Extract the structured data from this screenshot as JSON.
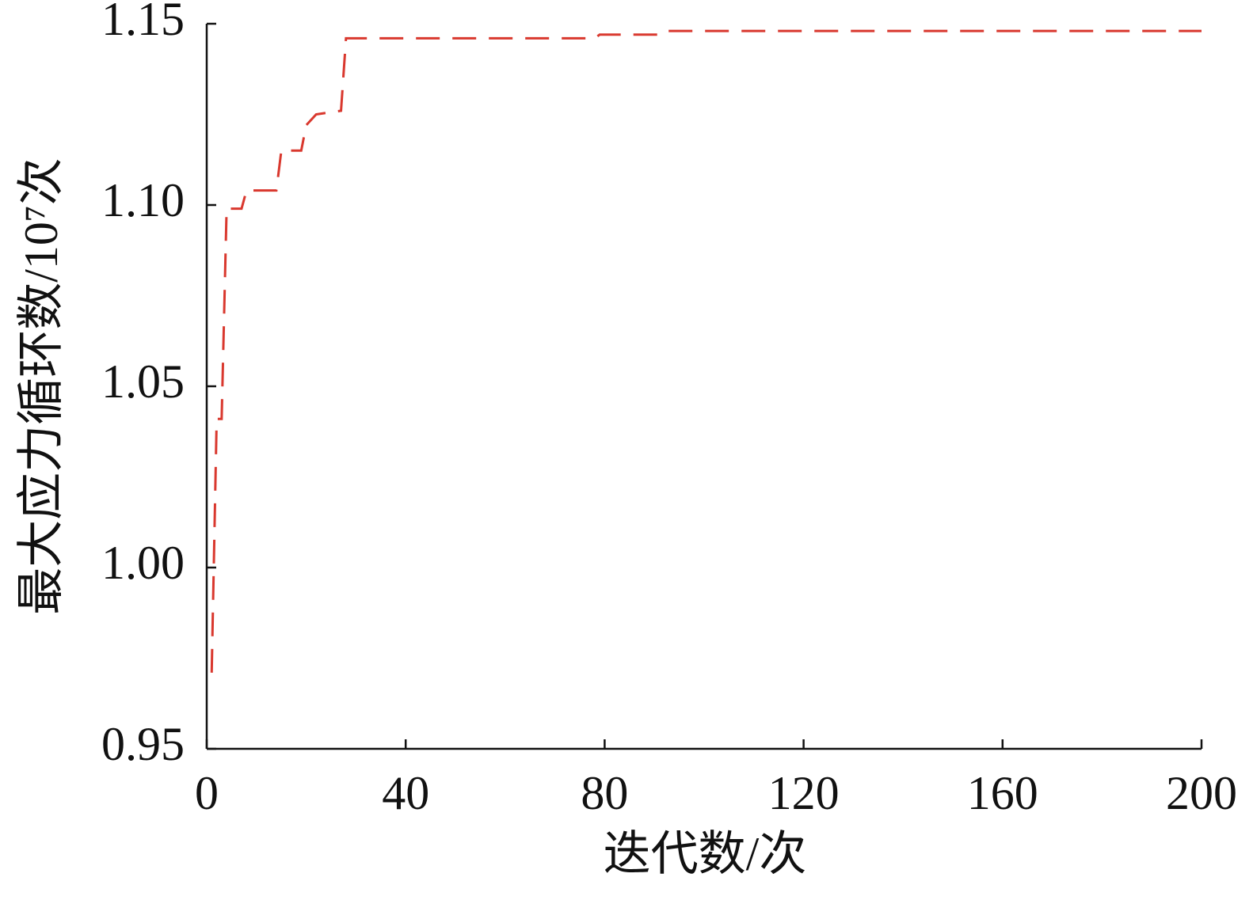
{
  "chart_data": {
    "type": "line",
    "x_label": "迭代数/次",
    "y_label": "最大应力循环数/10⁷次",
    "x": [
      1,
      2,
      3,
      4,
      7,
      8,
      14,
      15,
      19,
      20,
      22,
      27,
      28,
      78,
      79,
      91,
      92,
      200
    ],
    "series": [
      {
        "color": "#d9382e",
        "values": [
          0.971,
          1.041,
          1.041,
          1.099,
          1.099,
          1.104,
          1.104,
          1.115,
          1.115,
          1.122,
          1.125,
          1.126,
          1.146,
          1.146,
          1.147,
          1.147,
          1.148,
          1.148
        ]
      }
    ],
    "xlim": [
      0,
      200
    ],
    "xticks": [
      0,
      40,
      80,
      120,
      160,
      200
    ],
    "ylim": [
      0.95,
      1.15
    ],
    "yticks": [
      0.95,
      {
        "value": 1.0,
        "label": "1.00"
      },
      1.05,
      {
        "value": 1.1,
        "label": "1.10"
      },
      1.15
    ],
    "line_style": "dashed",
    "grid": false
  }
}
